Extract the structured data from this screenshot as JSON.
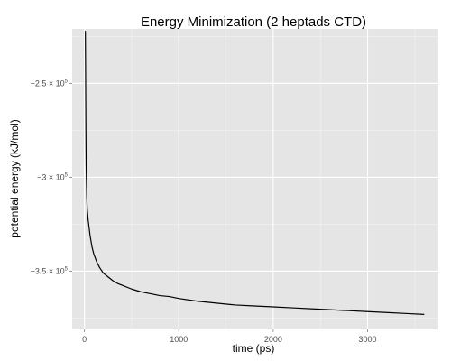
{
  "chart_data": {
    "type": "line",
    "title": "Energy Minimization (2 heptads CTD)",
    "xlabel": "time (ps)",
    "ylabel": "potential energy (kJ/mol)",
    "xlim": [
      -130,
      3750
    ],
    "ylim": [
      -381000.0,
      -221000.0
    ],
    "x_ticks": [
      {
        "value": 0,
        "label": "0"
      },
      {
        "value": 1000,
        "label": "1000"
      },
      {
        "value": 2000,
        "label": "2000"
      },
      {
        "value": 3000,
        "label": "3000"
      }
    ],
    "y_ticks": [
      {
        "value": -250000.0,
        "mantissa": "−2.5 × 10",
        "exponent": "5"
      },
      {
        "value": -300000.0,
        "mantissa": "−3 × 10",
        "exponent": "5"
      },
      {
        "value": -350000.0,
        "mantissa": "−3.5 × 10",
        "exponent": "5"
      }
    ],
    "grid": true,
    "legend": "none",
    "colors": {
      "panel": "#e5e5e5",
      "grid_major": "#ffffff",
      "grid_minor": "#f2f2f2",
      "line": "#000000",
      "tick_text": "#4d4d4d"
    },
    "series": [
      {
        "x": [
          10,
          12,
          14,
          16,
          18,
          20,
          25,
          30,
          40,
          50,
          60,
          80,
          100,
          130,
          160,
          200,
          250,
          300,
          350,
          400,
          500,
          600,
          700,
          800,
          900,
          1000,
          1200,
          1400,
          1600,
          1800,
          2000,
          2200,
          2400,
          2600,
          2800,
          3000,
          3200,
          3400,
          3600
        ],
        "y": [
          -222000.0,
          -240000.0,
          -260000.0,
          -278000.0,
          -293000.0,
          -299000.0,
          -311000.0,
          -317000.0,
          -323000.0,
          -327000.0,
          -331000.0,
          -337000.0,
          -341000.0,
          -345000.0,
          -348000.0,
          -351000.0,
          -353000.0,
          -355000.0,
          -356500.0,
          -357500.0,
          -359500.0,
          -361000.0,
          -362000.0,
          -363000.0,
          -363500.0,
          -364500.0,
          -366000.0,
          -367000.0,
          -368000.0,
          -368500.0,
          -369000.0,
          -369500.0,
          -370000.0,
          -370500.0,
          -371000.0,
          -371500.0,
          -372000.0,
          -372500.0,
          -373000.0
        ]
      }
    ]
  }
}
